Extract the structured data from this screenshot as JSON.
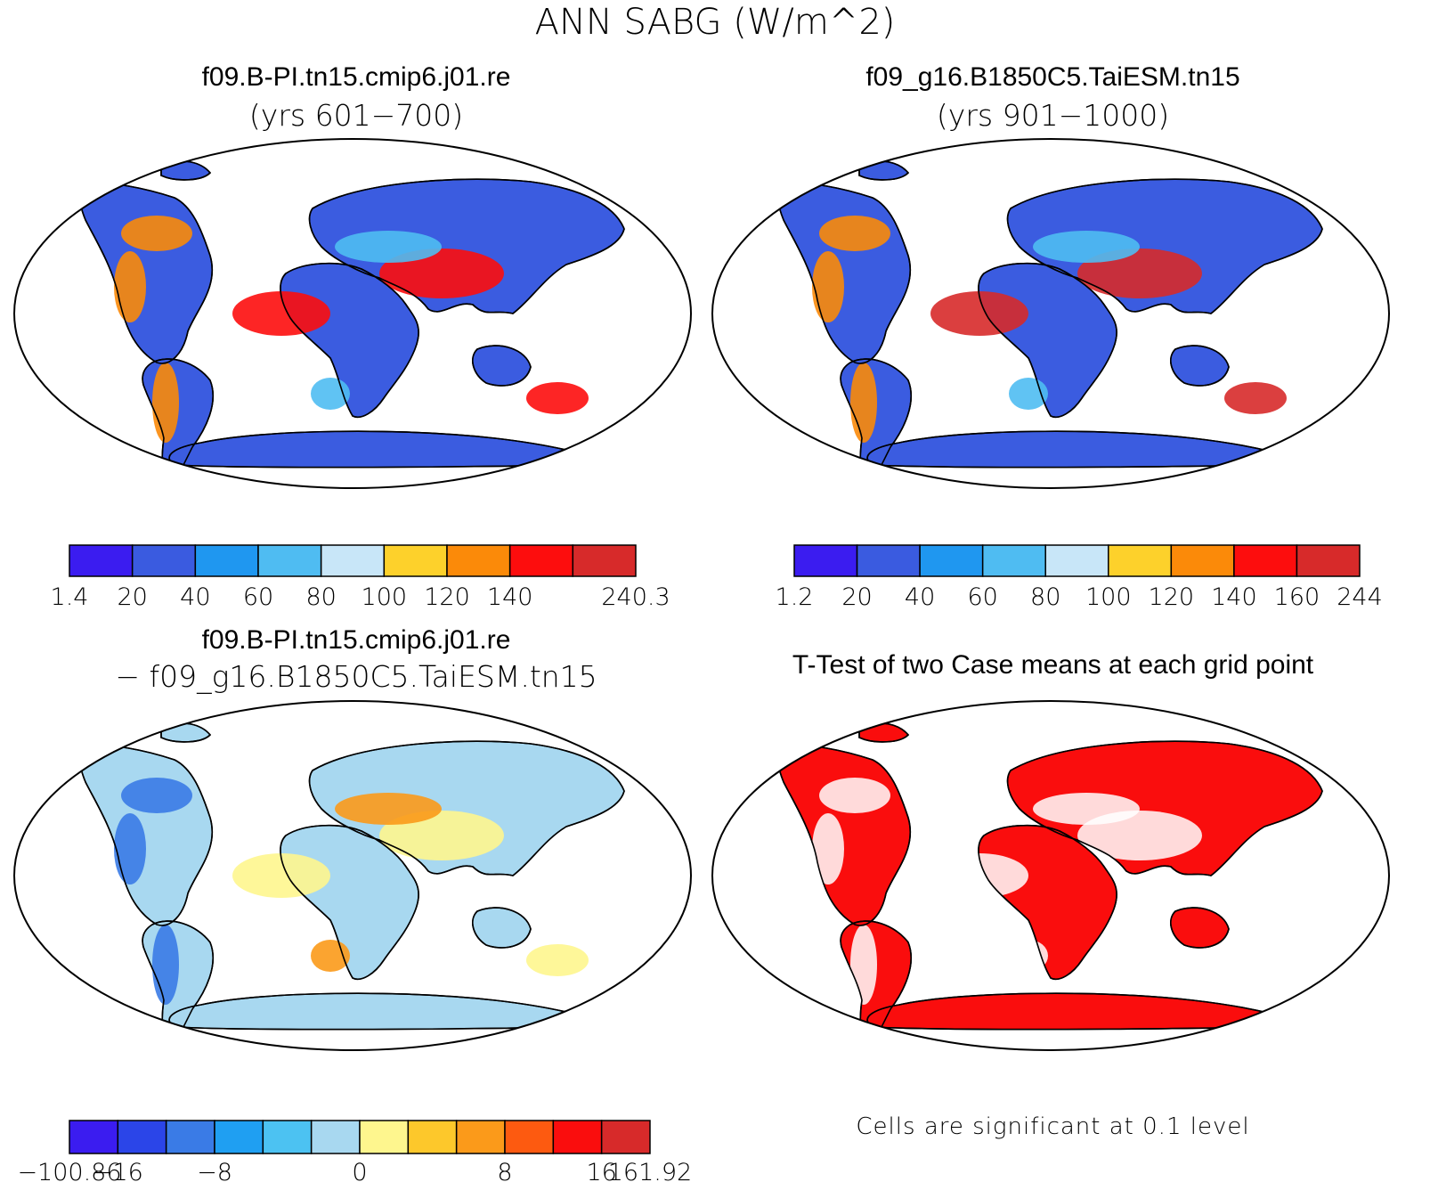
{
  "title": "ANN SABG (W/m^2)",
  "panels": [
    {
      "id": "case1",
      "title": "f09.B-PI.tn15.cmip6.j01.re",
      "subtitle": "(yrs 601−700)",
      "colorbar": {
        "colors": [
          "#3b1cf0",
          "#3a5be0",
          "#1f97f0",
          "#4fbcf2",
          "#c8e6f8",
          "#fdd12b",
          "#fb8a09",
          "#fd0d0d",
          "#d72a2a"
        ],
        "labels": [
          "1.4",
          "20",
          "40",
          "60",
          "80",
          "100",
          "120",
          "140",
          "240.3"
        ],
        "label_at_boundary": [
          0,
          1,
          2,
          3,
          4,
          5,
          6,
          7,
          9
        ]
      }
    },
    {
      "id": "case2",
      "title": "f09_g16.B1850C5.TaiESM.tn15",
      "subtitle": "(yrs 901−1000)",
      "colorbar": {
        "colors": [
          "#3b1cf0",
          "#3a5be0",
          "#1f97f0",
          "#4fbcf2",
          "#c8e6f8",
          "#fdd12b",
          "#fb8a09",
          "#fd0d0d",
          "#d72a2a"
        ],
        "labels": [
          "1.2",
          "20",
          "40",
          "60",
          "80",
          "100",
          "120",
          "140",
          "160",
          "244"
        ],
        "label_at_boundary": [
          0,
          1,
          2,
          3,
          4,
          5,
          6,
          7,
          8,
          9
        ]
      }
    },
    {
      "id": "diff",
      "title": "f09.B-PI.tn15.cmip6.j01.re",
      "subtitle": "− f09_g16.B1850C5.TaiESM.tn15",
      "colorbar": {
        "colors": [
          "#3b1cf0",
          "#2b45e8",
          "#3a7be6",
          "#1f9ff2",
          "#4cc2f2",
          "#a8d8f0",
          "#fef68e",
          "#fdc82b",
          "#fb9a1a",
          "#fd5a10",
          "#fa0d0d",
          "#d72a2a"
        ],
        "labels": [
          "−100.86",
          "−16",
          "−8",
          "0",
          "8",
          "16",
          "161.92"
        ],
        "label_at_boundary": [
          0,
          1,
          3,
          6,
          9,
          11,
          12
        ]
      }
    },
    {
      "id": "ttest",
      "title": "T-Test of two Case means at each grid point",
      "note": "Cells are significant at 0.1 level"
    }
  ]
}
